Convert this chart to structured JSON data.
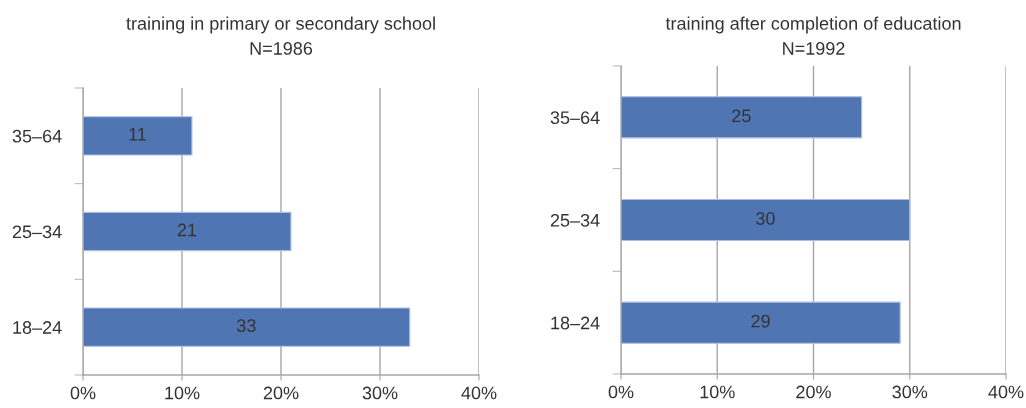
{
  "chart_data": [
    {
      "type": "bar",
      "orientation": "horizontal",
      "title": "training in primary or secondary school",
      "subtitle": "N=1986",
      "categories": [
        "35–64",
        "25–34",
        "18–24"
      ],
      "values": [
        11,
        21,
        33
      ],
      "color": "#4f76b3",
      "xlim": [
        0,
        40
      ],
      "xticks": [
        {
          "value": 0,
          "label": "0%"
        },
        {
          "value": 10,
          "label": "10%"
        },
        {
          "value": 20,
          "label": "20%"
        },
        {
          "value": 30,
          "label": "30%"
        },
        {
          "value": 40,
          "label": "40%"
        }
      ],
      "grid": "x",
      "data_labels": true
    },
    {
      "type": "bar",
      "orientation": "horizontal",
      "title": "training after completion of education",
      "subtitle": "N=1992",
      "categories": [
        "35–64",
        "25–34",
        "18–24"
      ],
      "values": [
        25,
        30,
        29
      ],
      "color": "#4f76b3",
      "xlim": [
        0,
        40
      ],
      "xticks": [
        {
          "value": 0,
          "label": "0%"
        },
        {
          "value": 10,
          "label": "10%"
        },
        {
          "value": 20,
          "label": "20%"
        },
        {
          "value": 30,
          "label": "30%"
        },
        {
          "value": 40,
          "label": "40%"
        }
      ],
      "grid": "x",
      "data_labels": true
    }
  ]
}
